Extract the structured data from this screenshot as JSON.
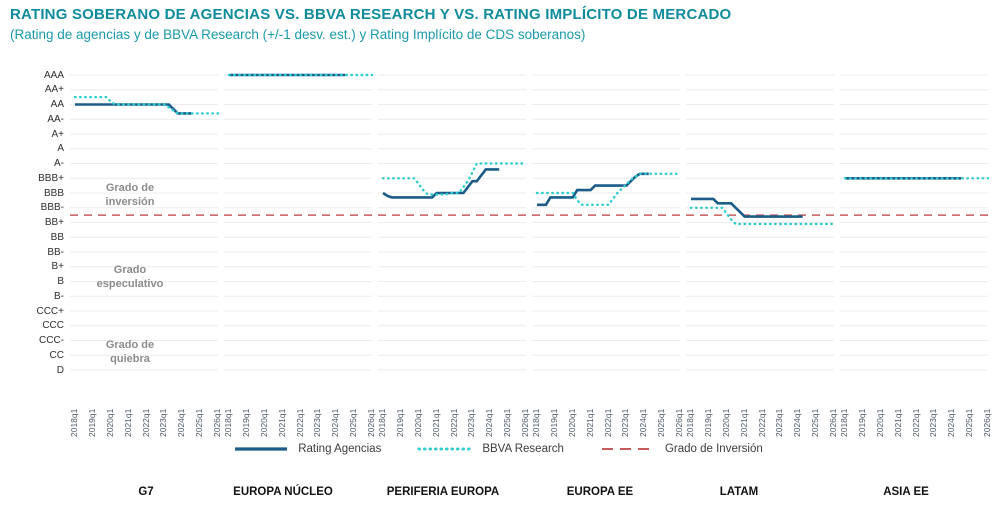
{
  "header": {
    "title": "RATING SOBERANO DE AGENCIAS VS. BBVA RESEARCH Y VS. RATING IMPLÍCITO DE MERCADO",
    "subtitle": "(Rating de agencias y de BBVA Research (+/-1 desv. est.) y Rating Implícito de CDS soberanos)"
  },
  "colors": {
    "title_teal": "#0f8c9c",
    "subtitle_teal": "#1b9aa8",
    "agencias_navy": "#1b5c88",
    "bbva_aqua": "#2dcccd",
    "investment_grade_red": "#c75b5b",
    "gridline": "#ececec",
    "annotation_grey": "#8c8c8c",
    "tick_grey": "#4e5a68"
  },
  "legend": [
    {
      "id": "agencias",
      "label": "Rating Agencias",
      "style": "solid"
    },
    {
      "id": "bbva",
      "label": "BBVA Research",
      "style": "dotted"
    },
    {
      "id": "grado",
      "label": "Grado de Inversión",
      "style": "dashed"
    }
  ],
  "annotations": [
    {
      "id": "inversion",
      "text": "Grado de inversión"
    },
    {
      "id": "especulativo",
      "text": "Grado especulativo"
    },
    {
      "id": "quiebra",
      "text": "Grado de quiebra"
    }
  ],
  "chart_data": {
    "type": "line",
    "title": "RATING SOBERANO DE AGENCIAS VS. BBVA RESEARCH Y VS. RATING IMPLÍCITO DE MERCADO",
    "y_axis_ratings_top_to_bottom": [
      "AAA",
      "AA+",
      "AA",
      "AA-",
      "A+",
      "A",
      "A-",
      "BBB+",
      "BBB",
      "BBB-",
      "BB+",
      "BB",
      "BB-",
      "B+",
      "B",
      "B-",
      "CCC+",
      "CCC",
      "CCC-",
      "CC",
      "D"
    ],
    "rating_numeric_note": "AAA=21 ... D=1; series values use this numeric scale",
    "x_tick_labels": [
      "2018q1",
      "2019q1",
      "2020q1",
      "2021q1",
      "2022q1",
      "2023q1",
      "2024q1",
      "2025q1",
      "2026q1"
    ],
    "quarters_per_panel": 33,
    "x_range": [
      "2018q1",
      "2026q1"
    ],
    "grid": true,
    "legend_position": "bottom",
    "investment_grade_threshold": 11.5,
    "panels": [
      {
        "name": "G7",
        "agencias": [
          19,
          19,
          19,
          19,
          19,
          19,
          19,
          19,
          19,
          19,
          19,
          19,
          19,
          19,
          19,
          19,
          19,
          19,
          19,
          19,
          19,
          19,
          18.7,
          18.4,
          18.4,
          18.4,
          18.4,
          null,
          null,
          null,
          null,
          null,
          null
        ],
        "bbva": [
          19.5,
          19.5,
          19.5,
          19.5,
          19.5,
          19.5,
          19.5,
          19.5,
          19.2,
          19,
          19,
          19,
          19,
          19,
          19,
          19,
          19,
          19,
          19,
          19,
          19,
          18.8,
          18.6,
          18.4,
          18.4,
          18.4,
          18.4,
          18.4,
          18.4,
          18.4,
          18.4,
          18.4,
          18.4
        ]
      },
      {
        "name": "EUROPA NÚCLEO",
        "agencias": [
          21,
          21,
          21,
          21,
          21,
          21,
          21,
          21,
          21,
          21,
          21,
          21,
          21,
          21,
          21,
          21,
          21,
          21,
          21,
          21,
          21,
          21,
          21,
          21,
          21,
          21,
          21,
          null,
          null,
          null,
          null,
          null,
          null
        ],
        "bbva": [
          21,
          21,
          21,
          21,
          21,
          21,
          21,
          21,
          21,
          21,
          21,
          21,
          21,
          21,
          21,
          21,
          21,
          21,
          21,
          21,
          21,
          21,
          21,
          21,
          21,
          21,
          21,
          21,
          21,
          21,
          21,
          21,
          21
        ]
      },
      {
        "name": "PERIFERIA EUROPA",
        "agencias": [
          13,
          12.8,
          12.7,
          12.7,
          12.7,
          12.7,
          12.7,
          12.7,
          12.7,
          12.7,
          12.7,
          12.7,
          13,
          13,
          13,
          13,
          13,
          13,
          13,
          13.4,
          13.8,
          13.8,
          14.2,
          14.6,
          14.6,
          14.6,
          14.6,
          null,
          null,
          null,
          null,
          null,
          null
        ],
        "bbva": [
          14,
          14,
          14,
          14,
          14,
          14,
          14,
          14,
          13.6,
          13.2,
          12.9,
          12.9,
          12.9,
          12.9,
          12.9,
          13,
          13,
          13,
          13.4,
          13.8,
          14.4,
          15,
          15,
          15,
          15,
          15,
          15,
          15,
          15,
          15,
          15,
          15,
          15
        ]
      },
      {
        "name": "EUROPA EE",
        "agencias": [
          12.2,
          12.2,
          12.2,
          12.7,
          12.7,
          12.7,
          12.7,
          12.7,
          12.7,
          13.2,
          13.2,
          13.2,
          13.2,
          13.5,
          13.5,
          13.5,
          13.5,
          13.5,
          13.5,
          13.5,
          13.5,
          13.8,
          14.1,
          14.3,
          14.3,
          14.3,
          null,
          null,
          null,
          null,
          null,
          null,
          null
        ],
        "bbva": [
          13,
          13,
          13,
          13,
          13,
          13,
          13,
          13,
          13,
          12.5,
          12.2,
          12.2,
          12.2,
          12.2,
          12.2,
          12.2,
          12.2,
          12.6,
          13,
          13.3,
          13.6,
          13.9,
          14.1,
          14.3,
          14.3,
          14.3,
          14.3,
          14.3,
          14.3,
          14.3,
          14.3,
          14.3,
          14.3
        ]
      },
      {
        "name": "LATAM",
        "agencias": [
          12.6,
          12.6,
          12.6,
          12.6,
          12.6,
          12.6,
          12.3,
          12.3,
          12.3,
          12.3,
          12,
          11.7,
          11.4,
          11.4,
          11.4,
          11.4,
          11.4,
          11.4,
          11.4,
          11.4,
          11.4,
          11.4,
          11.4,
          11.4,
          11.4,
          11.4,
          null,
          null,
          null,
          null,
          null,
          null,
          null
        ],
        "bbva": [
          12,
          12,
          12,
          12,
          12,
          12,
          12,
          12,
          11.6,
          11.2,
          10.9,
          10.9,
          10.9,
          10.9,
          10.9,
          10.9,
          10.9,
          10.9,
          10.9,
          10.9,
          10.9,
          10.9,
          10.9,
          10.9,
          10.9,
          10.9,
          10.9,
          10.9,
          10.9,
          10.9,
          10.9,
          10.9,
          10.9
        ]
      },
      {
        "name": "ASIA EE",
        "agencias": [
          14,
          14,
          14,
          14,
          14,
          14,
          14,
          14,
          14,
          14,
          14,
          14,
          14,
          14,
          14,
          14,
          14,
          14,
          14,
          14,
          14,
          14,
          14,
          14,
          14,
          14,
          14,
          null,
          null,
          null,
          null,
          null,
          null
        ],
        "bbva": [
          14,
          14,
          14,
          14,
          14,
          14,
          14,
          14,
          14,
          14,
          14,
          14,
          14,
          14,
          14,
          14,
          14,
          14,
          14,
          14,
          14,
          14,
          14,
          14,
          14,
          14,
          14,
          14,
          14,
          14,
          14,
          14,
          14
        ]
      }
    ]
  }
}
